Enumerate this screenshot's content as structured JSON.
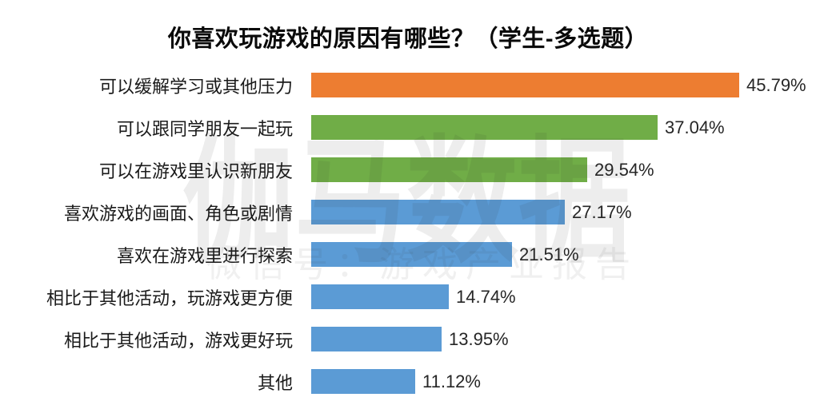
{
  "title": "你喜欢玩游戏的原因有哪些？（学生-多选题）",
  "watermark": {
    "big": "伽马数据",
    "small": "微信号：游戏产业报告"
  },
  "colors": {
    "orange": "#ED7D31",
    "green": "#70AD47",
    "blue": "#5B9BD5",
    "background": "#FFFFFF",
    "text": "#1A1A1A"
  },
  "chart_data": {
    "type": "bar",
    "orientation": "horizontal",
    "title": "你喜欢玩游戏的原因有哪些？（学生-多选题）",
    "categories": [
      "可以缓解学习或其他压力",
      "可以跟同学朋友一起玩",
      "可以在游戏里认识新朋友",
      "喜欢游戏的画面、角色或剧情",
      "喜欢在游戏里进行探索",
      "相比于其他活动，玩游戏更方便",
      "相比于其他活动，游戏更好玩",
      "其他"
    ],
    "values": [
      45.79,
      37.04,
      29.54,
      27.17,
      21.51,
      14.74,
      13.95,
      11.12
    ],
    "value_labels": [
      "45.79%",
      "37.04%",
      "29.54%",
      "27.17%",
      "21.51%",
      "14.74%",
      "13.95%",
      "11.12%"
    ],
    "bar_colors": [
      "#ED7D31",
      "#70AD47",
      "#70AD47",
      "#5B9BD5",
      "#5B9BD5",
      "#5B9BD5",
      "#5B9BD5",
      "#5B9BD5"
    ],
    "xlabel": "",
    "ylabel": "",
    "xlim": [
      0,
      48
    ],
    "grid": false,
    "legend": null,
    "data_labels": "outside-end",
    "sort": "descending"
  }
}
